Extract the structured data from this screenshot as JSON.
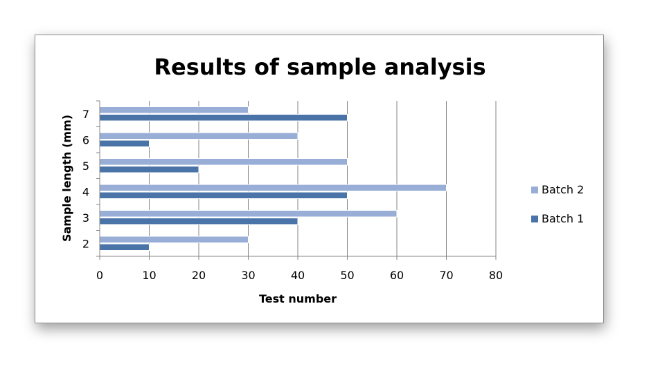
{
  "chart_data": {
    "type": "bar",
    "orientation": "horizontal",
    "title": "Results of sample analysis",
    "xlabel": "Test number",
    "ylabel": "Sample length (mm)",
    "categories": [
      "2",
      "3",
      "4",
      "5",
      "6",
      "7"
    ],
    "series": [
      {
        "name": "Batch 1",
        "values": [
          10,
          40,
          50,
          20,
          10,
          50
        ],
        "color": "#4a74a8"
      },
      {
        "name": "Batch 2",
        "values": [
          30,
          60,
          70,
          50,
          40,
          30
        ],
        "color": "#98aed6"
      }
    ],
    "xlim": [
      0,
      80
    ],
    "xticks": [
      "0",
      "10",
      "20",
      "30",
      "40",
      "50",
      "60",
      "70",
      "80"
    ],
    "grid": true,
    "legend_position": "right"
  }
}
